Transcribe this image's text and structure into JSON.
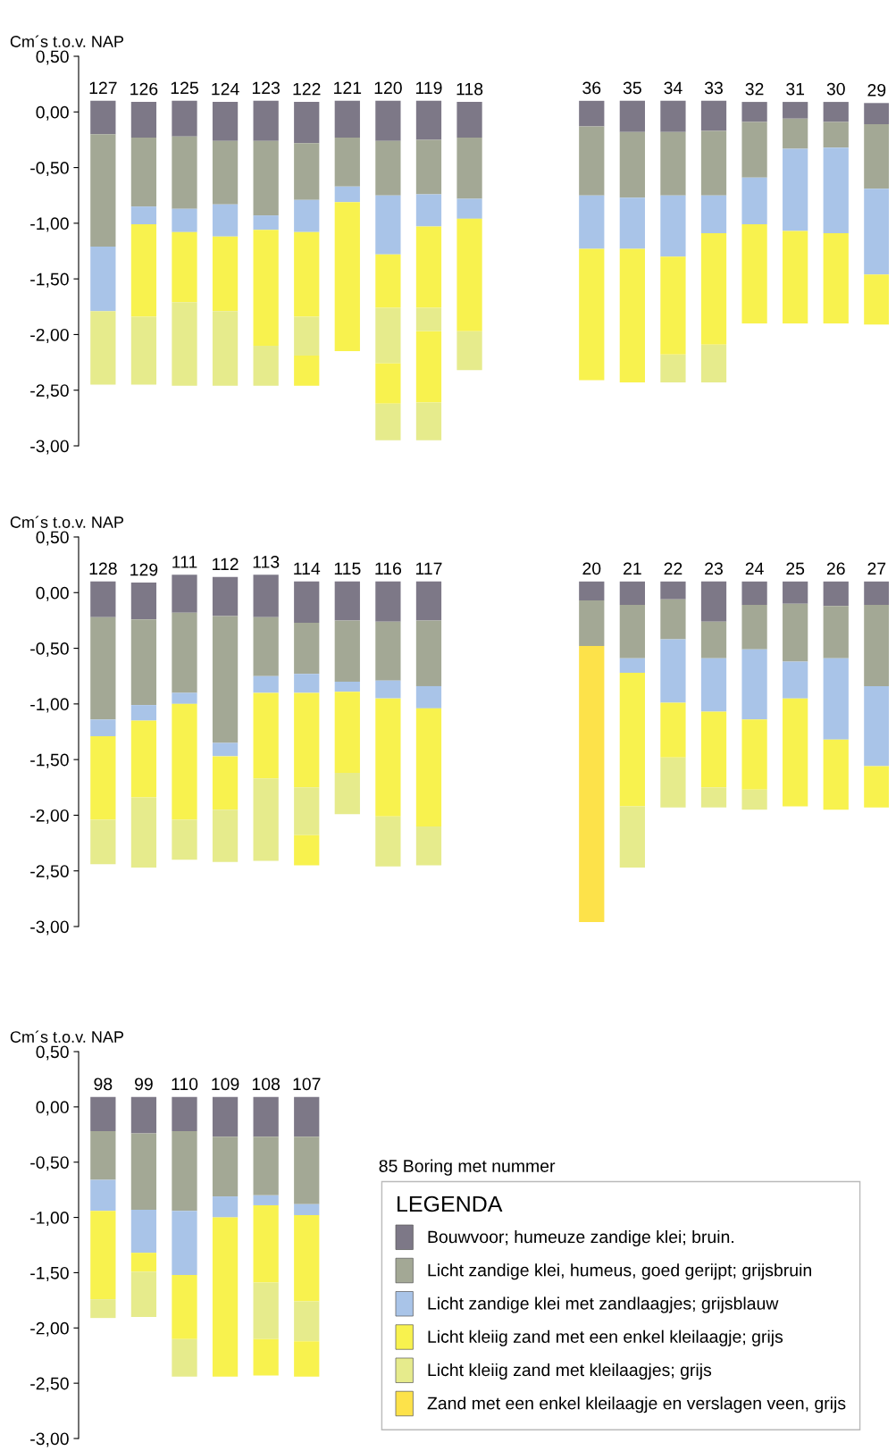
{
  "chart_data": [
    {
      "type": "bar",
      "ylabel": "Cm´s t.o.v. NAP",
      "ylim": [
        -3.0,
        0.5
      ],
      "yticks": [
        {
          "value": 0.5,
          "label": "0,50"
        },
        {
          "value": 0,
          "label": "0,00"
        },
        {
          "value": -0.5,
          "label": "-0,50"
        },
        {
          "value": -1.0,
          "label": "-1,00"
        },
        {
          "value": -1.5,
          "label": "-1,50"
        },
        {
          "value": -2.0,
          "label": "-2,00"
        },
        {
          "value": -2.5,
          "label": "-2,50"
        },
        {
          "value": -3.0,
          "label": "-3,00"
        }
      ],
      "categories": [
        "127",
        "126",
        "125",
        "124",
        "123",
        "122",
        "121",
        "120",
        "119",
        "118",
        null,
        null,
        "36",
        "35",
        "34",
        "33",
        "32",
        "31",
        "30",
        "29"
      ],
      "series": [
        {
          "color": "#7d7887",
          "base": [
            0.1,
            0.09,
            0.1,
            0.09,
            0.1,
            0.09,
            0.1,
            0.1,
            0.1,
            0.09,
            null,
            null,
            0.1,
            0.1,
            0.1,
            0.1,
            0.09,
            0.09,
            0.09,
            0.08
          ],
          "values": [
            -0.3,
            -0.32,
            -0.32,
            -0.35,
            -0.36,
            -0.37,
            -0.33,
            -0.36,
            -0.35,
            -0.32,
            null,
            null,
            -0.23,
            -0.28,
            -0.28,
            -0.27,
            -0.18,
            -0.15,
            -0.18,
            -0.19
          ]
        },
        {
          "color": "#a3a895",
          "base": [
            -0.2,
            -0.23,
            -0.22,
            -0.26,
            -0.26,
            -0.28,
            -0.23,
            -0.26,
            -0.25,
            -0.23,
            null,
            null,
            -0.13,
            -0.18,
            -0.18,
            -0.17,
            -0.09,
            -0.06,
            -0.09,
            -0.11
          ],
          "values": [
            -1.01,
            -0.62,
            -0.65,
            -0.57,
            -0.67,
            -0.51,
            -0.44,
            -0.49,
            -0.49,
            -0.55,
            null,
            null,
            -0.62,
            -0.59,
            -0.57,
            -0.58,
            -0.5,
            -0.27,
            -0.23,
            -0.58
          ]
        },
        {
          "color": "#a9c4e8",
          "base": [
            -1.21,
            -0.85,
            -0.87,
            -0.83,
            -0.93,
            -0.79,
            -0.67,
            -0.75,
            -0.74,
            -0.78,
            null,
            null,
            -0.75,
            -0.77,
            -0.75,
            -0.75,
            -0.59,
            -0.33,
            -0.32,
            -0.69
          ],
          "values": [
            -0.58,
            -0.16,
            -0.21,
            -0.29,
            -0.13,
            -0.29,
            -0.14,
            -0.53,
            -0.29,
            -0.18,
            null,
            null,
            -0.48,
            -0.46,
            -0.55,
            -0.34,
            -0.42,
            -0.74,
            -0.77,
            -0.77
          ]
        },
        {
          "color": "#f8f24e",
          "base": [
            null,
            -1.01,
            -1.08,
            -1.12,
            -1.06,
            -1.08,
            -0.81,
            -1.28,
            -1.03,
            -0.96,
            null,
            null,
            -1.23,
            -1.23,
            -1.3,
            -1.09,
            -1.01,
            -1.07,
            -1.09,
            -1.46
          ],
          "values": [
            null,
            -0.83,
            -0.63,
            -0.67,
            -1.04,
            -0.76,
            -1.34,
            -0.48,
            -0.73,
            -1.01,
            null,
            null,
            -1.18,
            -1.2,
            -0.88,
            -1.0,
            -0.89,
            -0.83,
            -0.81,
            -0.45
          ]
        },
        {
          "color": "#e6eb8c",
          "base": [
            -1.79,
            -1.84,
            -1.71,
            -1.79,
            -2.1,
            -1.84,
            null,
            -1.76,
            -1.76,
            -1.97,
            null,
            null,
            null,
            null,
            -2.18,
            -2.09,
            null,
            null,
            null,
            null
          ],
          "values": [
            -0.66,
            -0.61,
            -0.75,
            -0.67,
            -0.36,
            -0.35,
            null,
            -0.5,
            -0.21,
            -0.35,
            null,
            null,
            null,
            null,
            -0.25,
            -0.34,
            null,
            null,
            null,
            null
          ]
        },
        {
          "color": "#f8f24e",
          "base": [
            null,
            null,
            null,
            null,
            null,
            -2.19,
            null,
            -2.26,
            -1.97,
            null,
            null,
            null,
            null,
            null,
            null,
            null,
            null,
            null,
            null,
            null
          ],
          "values": [
            null,
            null,
            null,
            null,
            null,
            -0.27,
            null,
            -0.36,
            -0.64,
            null,
            null,
            null,
            null,
            null,
            null,
            null,
            null,
            null,
            null,
            null
          ]
        },
        {
          "color": "#e6eb8c",
          "base": [
            null,
            null,
            null,
            null,
            null,
            null,
            null,
            -2.62,
            -2.61,
            null,
            null,
            null,
            null,
            null,
            null,
            null,
            null,
            null,
            null,
            null
          ],
          "values": [
            null,
            null,
            null,
            null,
            null,
            null,
            null,
            -0.33,
            -0.34,
            null,
            null,
            null,
            null,
            null,
            null,
            null,
            null,
            null,
            null,
            null
          ]
        }
      ]
    },
    {
      "type": "bar",
      "ylabel": "Cm´s t.o.v. NAP",
      "ylim": [
        -3.0,
        0.5
      ],
      "yticks": [
        {
          "value": 0.5,
          "label": "0,50"
        },
        {
          "value": 0,
          "label": "0,00"
        },
        {
          "value": -0.5,
          "label": "-0,50"
        },
        {
          "value": -1.0,
          "label": "-1,00"
        },
        {
          "value": -1.5,
          "label": "-1,50"
        },
        {
          "value": -2.0,
          "label": "-2,00"
        },
        {
          "value": -2.5,
          "label": "-2,50"
        },
        {
          "value": -3.0,
          "label": "-3,00"
        }
      ],
      "categories": [
        "128",
        "129",
        "111",
        "112",
        "113",
        "114",
        "115",
        "116",
        "117",
        null,
        null,
        null,
        "20",
        "21",
        "22",
        "23",
        "24",
        "25",
        "26",
        "27"
      ],
      "series": [
        {
          "color": "#7d7887",
          "base": [
            0.1,
            0.09,
            0.16,
            0.14,
            0.16,
            0.1,
            0.1,
            0.1,
            0.1,
            null,
            null,
            null,
            0.1,
            0.1,
            0.1,
            0.1,
            0.1,
            0.1,
            0.1,
            0.1
          ],
          "values": [
            -0.32,
            -0.33,
            -0.34,
            -0.35,
            -0.38,
            -0.37,
            -0.35,
            -0.36,
            -0.35,
            null,
            null,
            null,
            -0.17,
            -0.21,
            -0.16,
            -0.36,
            -0.21,
            -0.2,
            -0.22,
            -0.21
          ]
        },
        {
          "color": "#a3a895",
          "base": [
            -0.22,
            -0.24,
            -0.18,
            -0.21,
            -0.22,
            -0.27,
            -0.25,
            -0.26,
            -0.25,
            null,
            null,
            null,
            -0.07,
            -0.11,
            -0.06,
            -0.26,
            -0.11,
            -0.1,
            -0.12,
            -0.11
          ],
          "values": [
            -0.92,
            -0.77,
            -0.72,
            -1.14,
            -0.53,
            -0.46,
            -0.55,
            -0.53,
            -0.59,
            null,
            null,
            null,
            -0.41,
            -0.48,
            -0.36,
            -0.33,
            -0.4,
            -0.52,
            -0.47,
            -0.73
          ]
        },
        {
          "color": "#a9c4e8",
          "base": [
            -1.14,
            -1.01,
            -0.9,
            -1.35,
            -0.75,
            -0.73,
            -0.8,
            -0.79,
            -0.84,
            null,
            null,
            null,
            null,
            -0.59,
            -0.42,
            -0.59,
            -0.51,
            -0.62,
            -0.59,
            -0.84
          ],
          "values": [
            -0.15,
            -0.14,
            -0.1,
            -0.12,
            -0.15,
            -0.17,
            -0.09,
            -0.16,
            -0.2,
            null,
            null,
            null,
            null,
            -0.13,
            -0.57,
            -0.48,
            -0.63,
            -0.33,
            -0.73,
            -0.72
          ]
        },
        {
          "color": "#f8f24e",
          "base": [
            -1.29,
            -1.15,
            -1.0,
            -1.47,
            -0.9,
            -0.9,
            -0.89,
            -0.95,
            -1.04,
            null,
            null,
            null,
            null,
            -0.72,
            -0.99,
            -1.07,
            -1.14,
            -0.95,
            -1.32,
            -1.56
          ],
          "values": [
            -0.75,
            -0.69,
            -1.04,
            -0.48,
            -0.77,
            -0.85,
            -0.73,
            -1.06,
            -1.06,
            null,
            null,
            null,
            null,
            -1.2,
            -0.49,
            -0.68,
            -0.63,
            -0.97,
            -0.63,
            -0.37
          ]
        },
        {
          "color": "#e6eb8c",
          "base": [
            -2.04,
            -1.84,
            -2.04,
            -1.95,
            -1.67,
            -1.75,
            -1.62,
            -2.01,
            -2.1,
            null,
            null,
            null,
            null,
            -1.92,
            -1.48,
            -1.75,
            -1.77,
            null,
            null,
            null
          ],
          "values": [
            -0.4,
            -0.63,
            -0.36,
            -0.47,
            -0.74,
            -0.43,
            -0.37,
            -0.45,
            -0.35,
            null,
            null,
            null,
            null,
            -0.55,
            -0.45,
            -0.18,
            -0.18,
            null,
            null,
            null
          ]
        },
        {
          "color": "#fde24a",
          "base": [
            null,
            null,
            null,
            null,
            null,
            null,
            null,
            null,
            null,
            null,
            null,
            null,
            -0.48,
            null,
            null,
            null,
            null,
            null,
            null,
            null
          ],
          "values": [
            null,
            null,
            null,
            null,
            null,
            null,
            null,
            null,
            null,
            null,
            null,
            null,
            -2.48,
            null,
            null,
            null,
            null,
            null,
            null,
            null
          ]
        },
        {
          "color": "#f8f24e",
          "base": [
            null,
            null,
            null,
            null,
            null,
            -2.18,
            null,
            null,
            null,
            null,
            null,
            null,
            null,
            null,
            null,
            null,
            null,
            null,
            null,
            null
          ],
          "values": [
            null,
            null,
            null,
            null,
            null,
            -0.27,
            null,
            null,
            null,
            null,
            null,
            null,
            null,
            null,
            null,
            null,
            null,
            null,
            null,
            null
          ]
        }
      ]
    },
    {
      "type": "bar",
      "ylabel": "Cm´s t.o.v. NAP",
      "ylim": [
        -3.0,
        0.5
      ],
      "yticks": [
        {
          "value": 0.5,
          "label": "0,50"
        },
        {
          "value": 0,
          "label": "0,00"
        },
        {
          "value": -0.5,
          "label": "-0,50"
        },
        {
          "value": -1.0,
          "label": "-1,00"
        },
        {
          "value": -1.5,
          "label": "-1,50"
        },
        {
          "value": -2.0,
          "label": "-2,00"
        },
        {
          "value": -2.5,
          "label": "-2,50"
        },
        {
          "value": -3.0,
          "label": "-3,00"
        }
      ],
      "categories": [
        "98",
        "99",
        "110",
        "109",
        "108",
        "107"
      ],
      "legend": "bottom right",
      "legend_title": "LEGENDA",
      "annotations": [
        "85 Boring met nummer"
      ],
      "series": [
        {
          "name": "Bouwvoor; humeuze zandige klei; bruin.",
          "color": "#7d7887",
          "base": [
            0.09,
            0.09,
            0.09,
            0.09,
            0.09,
            0.09
          ],
          "values": [
            -0.31,
            -0.33,
            -0.31,
            -0.36,
            -0.36,
            -0.36
          ]
        },
        {
          "name": "Licht zandige klei, humeus, goed gerijpt; grijsbruin",
          "color": "#a3a895",
          "base": [
            -0.22,
            -0.24,
            -0.22,
            -0.27,
            -0.27,
            -0.27
          ],
          "values": [
            -0.44,
            -0.69,
            -0.72,
            -0.54,
            -0.53,
            -0.61
          ]
        },
        {
          "name": "Licht zandige klei met zandlaagjes; grijsblauw",
          "color": "#a9c4e8",
          "base": [
            -0.66,
            -0.93,
            -0.94,
            -0.81,
            -0.8,
            -0.88
          ],
          "values": [
            -0.28,
            -0.39,
            -0.58,
            -0.19,
            -0.09,
            -0.1
          ]
        },
        {
          "name": "Licht kleiig zand met een enkel kleilaagje; grijs",
          "color": "#f8f24e",
          "base": [
            -0.94,
            -1.32,
            -1.52,
            -1.0,
            -0.89,
            -0.98
          ],
          "values": [
            -0.8,
            -0.17,
            -0.58,
            -1.44,
            -0.7,
            -0.78
          ]
        },
        {
          "name": "Licht kleiig zand met kleilaagjes; grijs",
          "color": "#e6eb8c",
          "base": [
            -1.74,
            -1.49,
            -2.1,
            null,
            -1.59,
            -1.76
          ],
          "values": [
            -0.17,
            -0.41,
            -0.34,
            null,
            -0.51,
            -0.36
          ]
        },
        {
          "name": "Zand met een enkel kleilaagje en verslagen veen, grijs",
          "color": "#fde24a",
          "base": [
            null,
            null,
            null,
            null,
            null,
            null
          ],
          "values": [
            null,
            null,
            null,
            null,
            null,
            null
          ]
        },
        {
          "color": "#f8f24e",
          "base": [
            null,
            null,
            null,
            null,
            -2.1,
            -2.12
          ],
          "values": [
            null,
            null,
            null,
            null,
            -0.33,
            -0.32
          ]
        }
      ]
    }
  ]
}
